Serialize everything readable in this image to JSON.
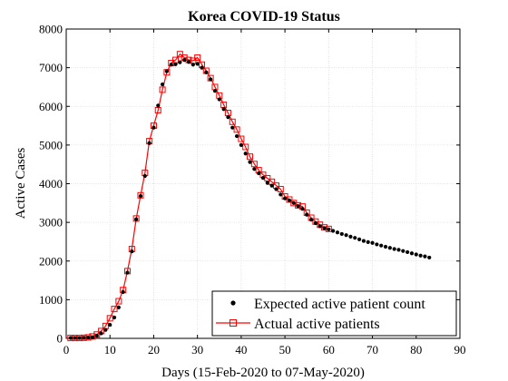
{
  "chart_data": {
    "type": "scatter",
    "title": "Korea COVID-19 Status",
    "xlabel": "Days (15-Feb-2020 to 07-May-2020)",
    "ylabel": "Active Cases",
    "xlim": [
      0,
      90
    ],
    "ylim": [
      0,
      8000
    ],
    "xticks": [
      "0",
      "10",
      "20",
      "30",
      "40",
      "50",
      "60",
      "70",
      "80",
      "90"
    ],
    "yticks": [
      "0",
      "1000",
      "2000",
      "3000",
      "4000",
      "5000",
      "6000",
      "7000",
      "8000"
    ],
    "grid": true,
    "legend_position": "bottom-right",
    "series": [
      {
        "name": "Expected active patient count",
        "style": "dots",
        "color": "#000000",
        "x": [
          1,
          2,
          3,
          4,
          5,
          6,
          7,
          8,
          9,
          10,
          11,
          12,
          13,
          14,
          15,
          16,
          17,
          18,
          19,
          20,
          21,
          22,
          23,
          24,
          25,
          26,
          27,
          28,
          29,
          30,
          31,
          32,
          33,
          34,
          35,
          36,
          37,
          38,
          39,
          40,
          41,
          42,
          43,
          44,
          45,
          46,
          47,
          48,
          49,
          50,
          51,
          52,
          53,
          54,
          55,
          56,
          57,
          58,
          59,
          60,
          61,
          62,
          63,
          64,
          65,
          66,
          67,
          68,
          69,
          70,
          71,
          72,
          73,
          74,
          75,
          76,
          77,
          78,
          79,
          80,
          81,
          82,
          83
        ],
        "y": [
          10,
          10,
          10,
          15,
          20,
          30,
          70,
          130,
          220,
          350,
          540,
          800,
          1200,
          1700,
          2250,
          3080,
          3680,
          4200,
          5050,
          5450,
          6020,
          6570,
          6910,
          7080,
          7090,
          7140,
          7200,
          7150,
          7080,
          7100,
          7000,
          6880,
          6700,
          6400,
          6180,
          5930,
          5720,
          5450,
          5230,
          5000,
          4780,
          4560,
          4380,
          4270,
          4150,
          4020,
          3950,
          3860,
          3720,
          3620,
          3570,
          3500,
          3420,
          3350,
          3200,
          3070,
          2980,
          2900,
          2850,
          2820,
          2780,
          2740,
          2700,
          2670,
          2630,
          2600,
          2560,
          2520,
          2490,
          2470,
          2430,
          2400,
          2370,
          2340,
          2310,
          2290,
          2260,
          2230,
          2200,
          2170,
          2140,
          2120,
          2090
        ]
      },
      {
        "name": "Actual active patients",
        "style": "line-square",
        "color": "#ff0000",
        "x": [
          1,
          2,
          3,
          4,
          5,
          6,
          7,
          8,
          9,
          10,
          11,
          12,
          13,
          14,
          15,
          16,
          17,
          18,
          19,
          20,
          21,
          22,
          23,
          24,
          25,
          26,
          27,
          28,
          29,
          30,
          31,
          32,
          33,
          34,
          35,
          36,
          37,
          38,
          39,
          40,
          41,
          42,
          43,
          44,
          45,
          46,
          47,
          48,
          49,
          50,
          51,
          52,
          53,
          54,
          55,
          56,
          57,
          58,
          59,
          60
        ],
        "y": [
          10,
          10,
          10,
          15,
          25,
          50,
          100,
          190,
          320,
          520,
          760,
          960,
          1250,
          1740,
          2310,
          3100,
          3700,
          4280,
          5100,
          5500,
          5900,
          6430,
          6880,
          7120,
          7200,
          7350,
          7260,
          7200,
          7180,
          7260,
          7080,
          6920,
          6730,
          6500,
          6280,
          6040,
          5830,
          5600,
          5400,
          5160,
          4950,
          4700,
          4510,
          4350,
          4230,
          4140,
          4050,
          3950,
          3860,
          3670,
          3590,
          3500,
          3440,
          3410,
          3250,
          3120,
          3020,
          2940,
          2870,
          2830
        ]
      }
    ]
  }
}
